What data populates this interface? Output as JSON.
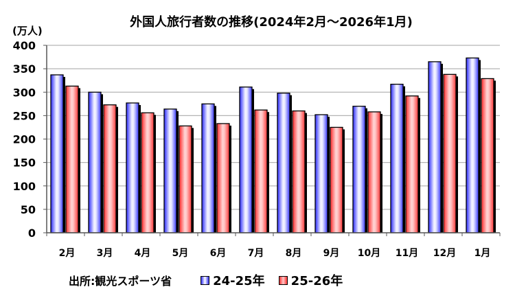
{
  "chart_data": {
    "type": "bar",
    "title": "外国人旅行者数の推移(2024年2月～2026年1月)",
    "ylabel": "(万人)",
    "xlabel": "",
    "ylim": [
      0,
      400
    ],
    "yticks": [
      0,
      50,
      100,
      150,
      200,
      250,
      300,
      350,
      400
    ],
    "grid": true,
    "legend_position": "bottom",
    "categories": [
      "2月",
      "3月",
      "4月",
      "5月",
      "6月",
      "7月",
      "8月",
      "9月",
      "10月",
      "11月",
      "12月",
      "1月"
    ],
    "series": [
      {
        "name": "24-25年",
        "color": "#3333ff",
        "values": [
          337,
          300,
          277,
          264,
          275,
          311,
          298,
          252,
          270,
          317,
          365,
          373
        ]
      },
      {
        "name": "25-26年",
        "color": "#ff3333",
        "values": [
          313,
          273,
          256,
          228,
          233,
          262,
          260,
          225,
          258,
          292,
          338,
          329
        ]
      }
    ],
    "source": "出所:観光スポーツ省"
  },
  "header": {
    "title": "外国人旅行者数の推移(2024年2月～2026年1月)",
    "unit": "(万人)"
  },
  "footer": {
    "source": "出所:観光スポーツ省",
    "legend": [
      {
        "label": "24-25年",
        "color": "#3333ff"
      },
      {
        "label": "25-26年",
        "color": "#ff3333"
      }
    ]
  }
}
